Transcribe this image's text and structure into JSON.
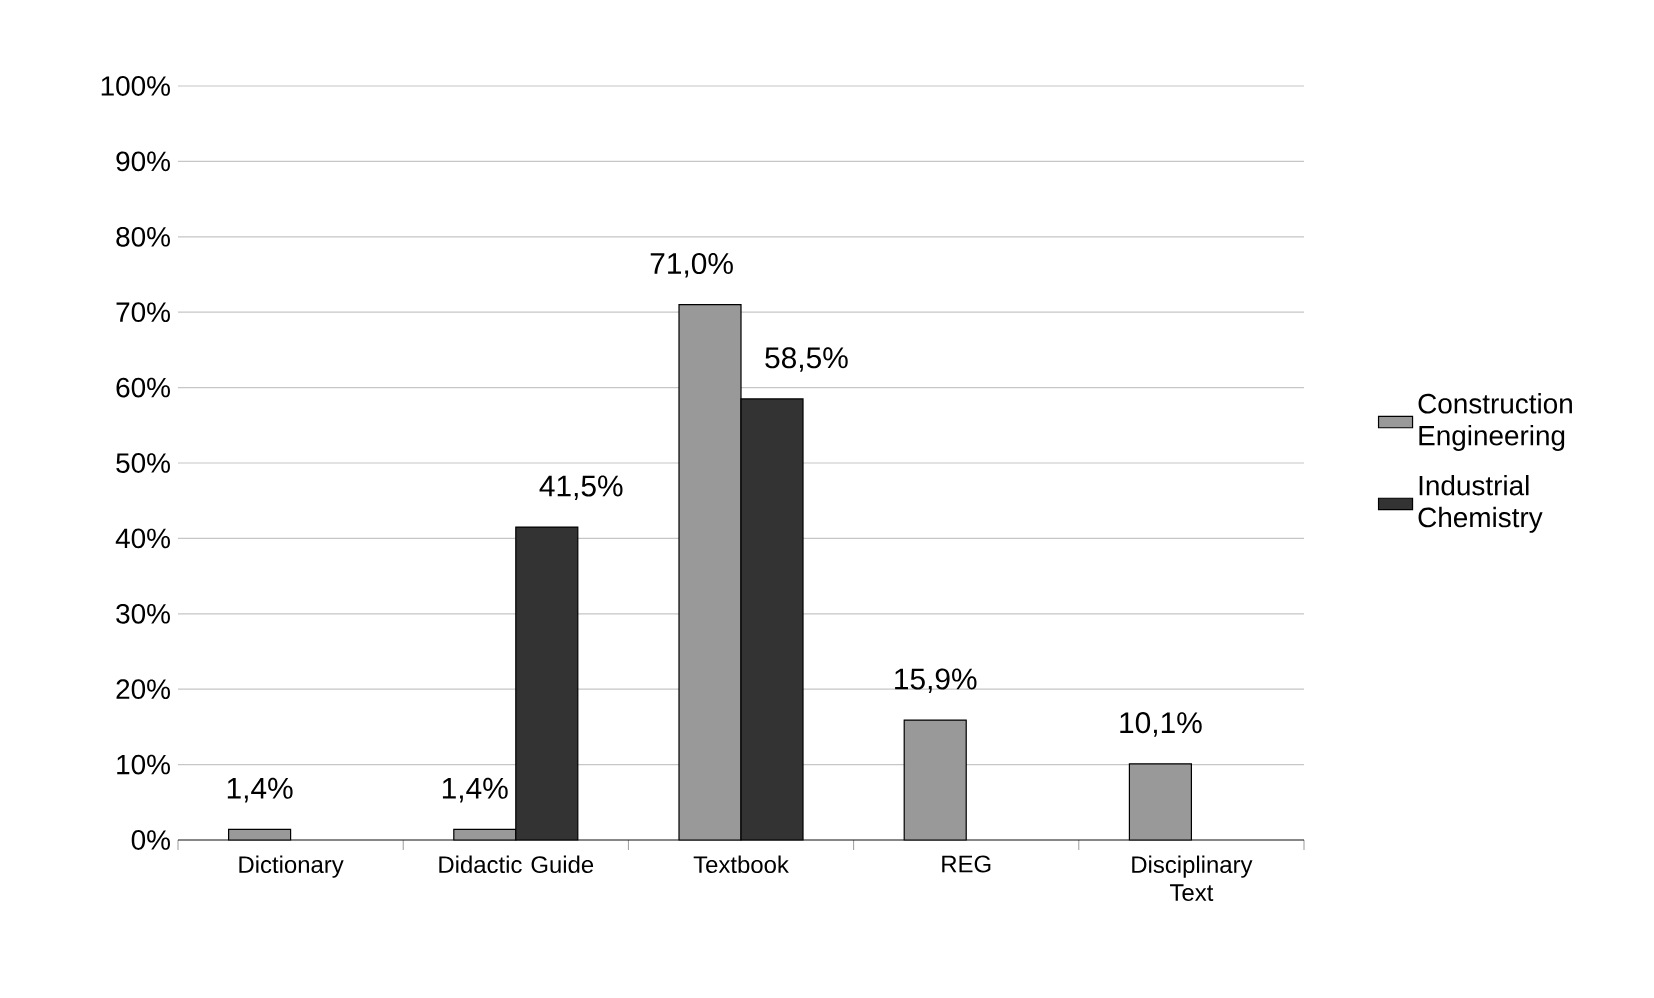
{
  "chart_data": {
    "type": "bar",
    "categories": [
      "Dictionary",
      "Didactic Guide",
      "Textbook",
      "REG",
      "Disciplinary Text"
    ],
    "series": [
      {
        "name": "Construction Engineering",
        "color": "#999999",
        "values": [
          1.4,
          1.4,
          71.0,
          15.9,
          10.1
        ],
        "value_labels": [
          "1,4%",
          "1,4%",
          "71,0%",
          "15,9%",
          "10,1%"
        ]
      },
      {
        "name": "Industrial Chemistry",
        "color": "#333333",
        "values": [
          null,
          41.5,
          58.5,
          null,
          null
        ],
        "value_labels": [
          null,
          "41,5%",
          "58,5%",
          null,
          null
        ]
      }
    ],
    "ylim": [
      0,
      100
    ],
    "yticks": [
      {
        "value": 0,
        "label": "0%"
      },
      {
        "value": 10,
        "label": "10%"
      },
      {
        "value": 20,
        "label": "20%"
      },
      {
        "value": 30,
        "label": "30%"
      },
      {
        "value": 40,
        "label": "40%"
      },
      {
        "value": 50,
        "label": "50%"
      },
      {
        "value": 60,
        "label": "60%"
      },
      {
        "value": 70,
        "label": "70%"
      },
      {
        "value": 80,
        "label": "80%"
      },
      {
        "value": 90,
        "label": "90%"
      },
      {
        "value": 100,
        "label": "100%"
      }
    ],
    "grid": "y",
    "legend": "right"
  }
}
